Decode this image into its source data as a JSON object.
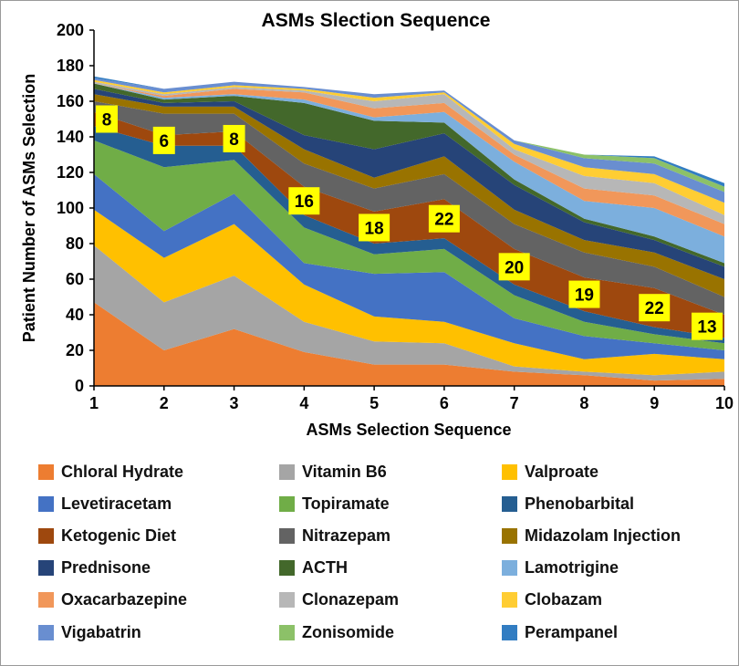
{
  "chart_data": {
    "type": "area",
    "stacked": true,
    "title": "ASMs Slection Sequence",
    "xlabel": "ASMs Selection Sequence",
    "ylabel": "Patient Number  of ASMs Selection",
    "x": [
      1,
      2,
      3,
      4,
      5,
      6,
      7,
      8,
      9,
      10
    ],
    "ylim": [
      0,
      200
    ],
    "yticks": [
      0,
      20,
      40,
      60,
      80,
      100,
      120,
      140,
      160,
      180,
      200
    ],
    "series": [
      {
        "name": "Chloral Hydrate",
        "color": "#ED7D31",
        "values": [
          47,
          20,
          32,
          19,
          12,
          12,
          8,
          6,
          3,
          4
        ]
      },
      {
        "name": "Vitamin B6",
        "color": "#A5A5A5",
        "values": [
          32,
          27,
          30,
          17,
          13,
          12,
          3,
          2,
          3,
          4
        ]
      },
      {
        "name": "Valproate",
        "color": "#FFC000",
        "values": [
          20,
          25,
          29,
          21,
          14,
          12,
          13,
          7,
          12,
          7
        ]
      },
      {
        "name": "Levetiracetam",
        "color": "#4472C4",
        "values": [
          20,
          15,
          17,
          12,
          24,
          28,
          14,
          13,
          6,
          5
        ]
      },
      {
        "name": "Topiramate",
        "color": "#70AD47",
        "values": [
          19,
          36,
          19,
          20,
          11,
          13,
          13,
          8,
          5,
          4
        ]
      },
      {
        "name": "Phenobarbital",
        "color": "#255E91",
        "values": [
          8,
          12,
          8,
          7,
          6,
          6,
          6,
          6,
          4,
          3
        ]
      },
      {
        "name": "Ketogenic Diet",
        "color": "#9E480E",
        "values": [
          8,
          6,
          8,
          16,
          18,
          22,
          20,
          19,
          22,
          13
        ]
      },
      {
        "name": "Nitrazepam",
        "color": "#636363",
        "values": [
          6,
          12,
          10,
          13,
          13,
          14,
          14,
          14,
          12,
          10
        ]
      },
      {
        "name": "Midazolam Injection",
        "color": "#997300",
        "values": [
          4,
          4,
          4,
          8,
          6,
          10,
          8,
          7,
          8,
          10
        ]
      },
      {
        "name": "Prednisone",
        "color": "#264478",
        "values": [
          3,
          2,
          3,
          8,
          16,
          13,
          14,
          10,
          7,
          7
        ]
      },
      {
        "name": "ACTH",
        "color": "#43682B",
        "values": [
          3,
          2,
          3,
          18,
          16,
          6,
          3,
          2,
          2,
          2
        ]
      },
      {
        "name": "Lamotrigine",
        "color": "#7CAFDD",
        "values": [
          0,
          1,
          1,
          2,
          2,
          6,
          10,
          10,
          16,
          15
        ]
      },
      {
        "name": "Oxacarbazepine",
        "color": "#F1975A",
        "values": [
          0,
          1,
          3,
          4,
          5,
          5,
          4,
          7,
          7,
          7
        ]
      },
      {
        "name": "Clonazepam",
        "color": "#B7B7B7",
        "values": [
          1,
          1,
          1,
          1,
          4,
          5,
          3,
          7,
          7,
          5
        ]
      },
      {
        "name": "Clobazam",
        "color": "#FFCD33",
        "values": [
          1,
          1,
          1,
          1,
          2,
          1,
          3,
          5,
          5,
          7
        ]
      },
      {
        "name": "Vigabatrin",
        "color": "#698ED0",
        "values": [
          1,
          2,
          2,
          1,
          2,
          1,
          2,
          5,
          6,
          6
        ]
      },
      {
        "name": "Zonisomide",
        "color": "#8CC168",
        "values": [
          0,
          0,
          0,
          0,
          0,
          0,
          0,
          2,
          3,
          3
        ]
      },
      {
        "name": "Perampanel",
        "color": "#327DC2",
        "values": [
          1,
          0,
          0,
          0,
          0,
          0,
          0,
          0,
          1,
          2
        ]
      }
    ],
    "annotations": [
      {
        "x": 1,
        "series": "Ketogenic Diet",
        "label": "8"
      },
      {
        "x": 2,
        "series": "Ketogenic Diet",
        "label": "6"
      },
      {
        "x": 3,
        "series": "Ketogenic Diet",
        "label": "8"
      },
      {
        "x": 4,
        "series": "Ketogenic Diet",
        "label": "16"
      },
      {
        "x": 5,
        "series": "Ketogenic Diet",
        "label": "18"
      },
      {
        "x": 6,
        "series": "Ketogenic Diet",
        "label": "22"
      },
      {
        "x": 7,
        "series": "Ketogenic Diet",
        "label": "20"
      },
      {
        "x": 8,
        "series": "Ketogenic Diet",
        "label": "19"
      },
      {
        "x": 9,
        "series": "Ketogenic Diet",
        "label": "22"
      },
      {
        "x": 10,
        "series": "Ketogenic Diet",
        "label": "13"
      }
    ],
    "annotation_color": "#FFFF00",
    "grid": false,
    "legend_position": "bottom"
  }
}
